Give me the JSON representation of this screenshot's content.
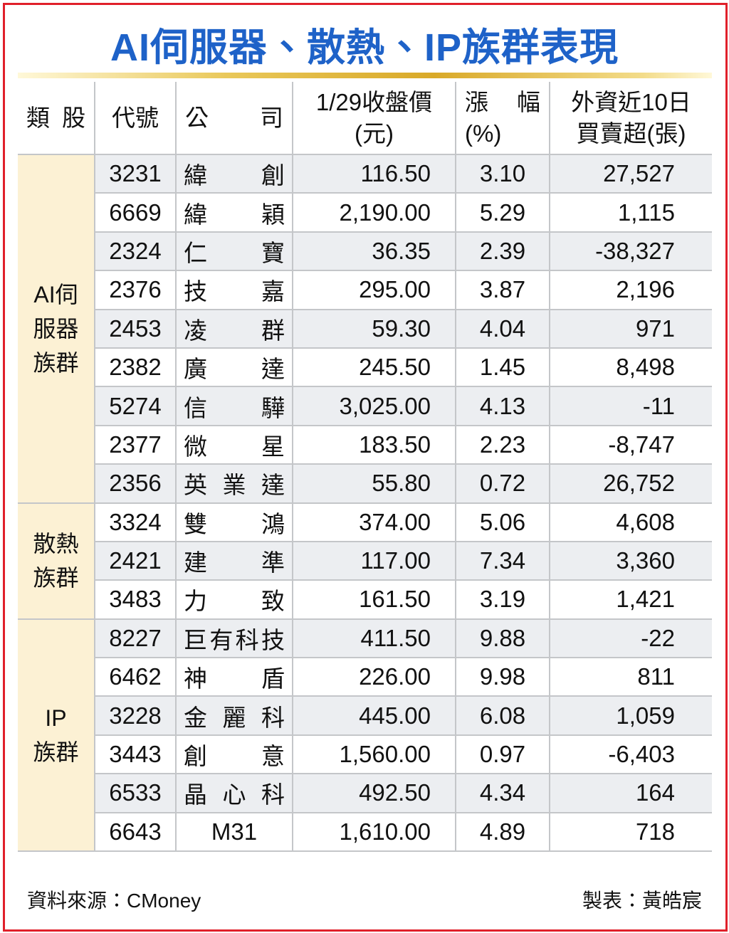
{
  "title": "AI伺服器、散熱、IP族群表現",
  "table": {
    "headers": [
      [
        "類股"
      ],
      [
        "代號"
      ],
      [
        "公司"
      ],
      [
        "1/29收盤價",
        "(元)"
      ],
      [
        "漲幅",
        "(%)"
      ],
      [
        "外資近10日",
        "買賣超(張)"
      ]
    ],
    "groups": [
      {
        "name": [
          "AI伺",
          "服器",
          "族群"
        ],
        "rows": [
          [
            "3231",
            "緯創",
            "116.50",
            "3.10",
            "27,527"
          ],
          [
            "6669",
            "緯穎",
            "2,190.00",
            "5.29",
            "1,115"
          ],
          [
            "2324",
            "仁寶",
            "36.35",
            "2.39",
            "-38,327"
          ],
          [
            "2376",
            "技嘉",
            "295.00",
            "3.87",
            "2,196"
          ],
          [
            "2453",
            "凌群",
            "59.30",
            "4.04",
            "971"
          ],
          [
            "2382",
            "廣達",
            "245.50",
            "1.45",
            "8,498"
          ],
          [
            "5274",
            "信驊",
            "3,025.00",
            "4.13",
            "-11"
          ],
          [
            "2377",
            "微星",
            "183.50",
            "2.23",
            "-8,747"
          ],
          [
            "2356",
            "英業達",
            "55.80",
            "0.72",
            "26,752"
          ]
        ]
      },
      {
        "name": [
          "散熱",
          "族群"
        ],
        "rows": [
          [
            "3324",
            "雙鴻",
            "374.00",
            "5.06",
            "4,608"
          ],
          [
            "2421",
            "建準",
            "117.00",
            "7.34",
            "3,360"
          ],
          [
            "3483",
            "力致",
            "161.50",
            "3.19",
            "1,421"
          ]
        ]
      },
      {
        "name": [
          "IP",
          "族群"
        ],
        "rows": [
          [
            "8227",
            "巨有科技",
            "411.50",
            "9.88",
            "-22"
          ],
          [
            "6462",
            "神盾",
            "226.00",
            "9.98",
            "811"
          ],
          [
            "3228",
            "金麗科",
            "445.00",
            "6.08",
            "1,059"
          ],
          [
            "3443",
            "創意",
            "1,560.00",
            "0.97",
            "-6,403"
          ],
          [
            "6533",
            "晶心科",
            "492.50",
            "4.34",
            "164"
          ],
          [
            "6643",
            "M31",
            "1,610.00",
            "4.89",
            "718"
          ]
        ]
      }
    ]
  },
  "footer": {
    "source": "資料來源：CMoney",
    "author": "製表：黃皓宸"
  }
}
